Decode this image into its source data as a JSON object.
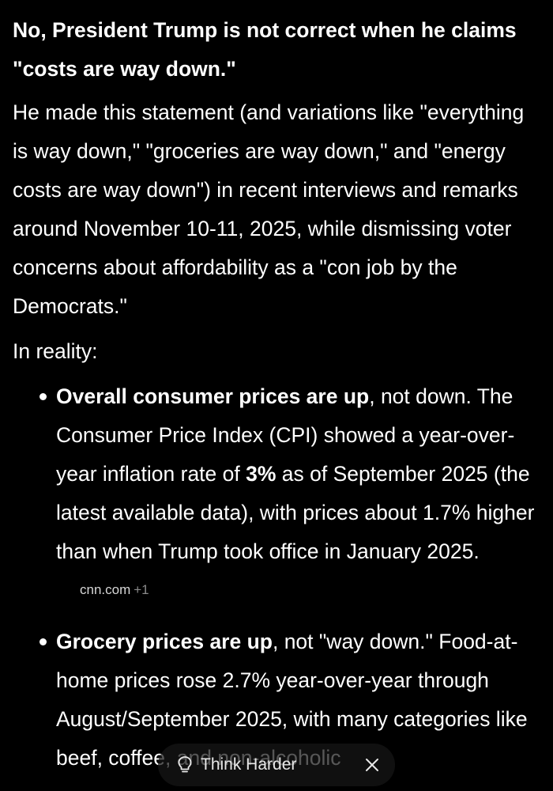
{
  "answer": {
    "heading": "No, President Trump is not correct when he claims \"costs are way down.\"",
    "intro": "He made this statement (and variations like \"everything is way down,\" \"groceries are way down,\" and \"energy costs are way down\") in recent interviews and remarks around November 10-11, 2025, while dismissing voter concerns about affordability as a \"con job by the Democrats.\"",
    "reality_label": "In reality:",
    "bullets": [
      {
        "bold_lead": "Overall consumer prices are up",
        "text_before_bold": ", not down. The Consumer Price Index (CPI) showed a year-over-year inflation rate of ",
        "bold_inline": "3%",
        "text_after_bold": " as of September 2025 (the latest available data), with prices about 1.7% higher than when Trump took office in January 2025.",
        "source": {
          "name": "cnn.com",
          "count": "+1"
        }
      },
      {
        "bold_lead": "Grocery prices are up",
        "text": ", not \"way down.\" Food-at-home prices rose 2.7% year-over-year through August/September 2025, with many categories like beef, coffee, and non-alcoholic"
      }
    ]
  },
  "actions": {
    "think_harder_label": "Think Harder",
    "think_icon": "lightbulb-icon",
    "close_icon": "close-icon"
  },
  "colors": {
    "background": "#000000",
    "text": "#ffffff",
    "source_text": "#d6d6d6",
    "source_count": "#8a8a8a"
  }
}
